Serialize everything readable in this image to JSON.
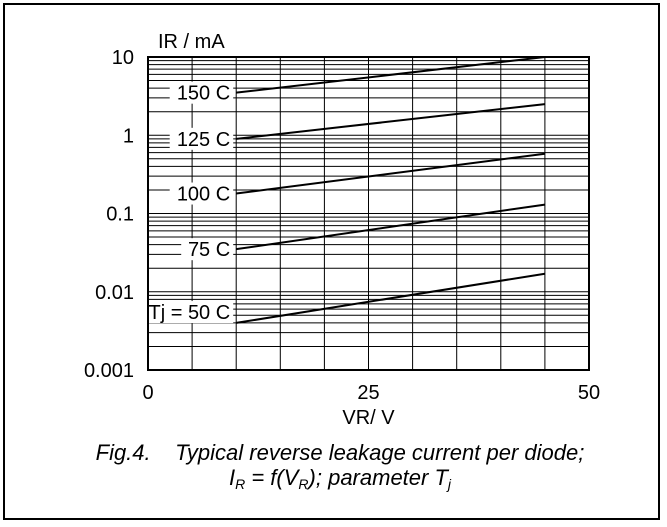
{
  "caption": {
    "line1_fig": "Fig.4.",
    "line1_text": "Typical reverse leakage current per diode;",
    "line2_I": "I",
    "line2_R1": "R",
    "line2_mid": " = f(V",
    "line2_R2": "R",
    "line2_tail": "); parameter T",
    "line2_j": "j"
  },
  "chart_data": {
    "type": "line",
    "title": "",
    "xlabel": "VR/ V",
    "ylabel": "IR / mA",
    "xlim": [
      0,
      50
    ],
    "ylim": [
      0.001,
      10
    ],
    "yscale": "log",
    "grid": true,
    "x_ticks": [
      {
        "value": 0,
        "label": "0"
      },
      {
        "value": 25,
        "label": "25"
      },
      {
        "value": 50,
        "label": "50"
      }
    ],
    "y_ticks": [
      {
        "value": 10,
        "label": "10"
      },
      {
        "value": 1,
        "label": "1"
      },
      {
        "value": 0.1,
        "label": "0.1"
      },
      {
        "value": 0.01,
        "label": "0.01"
      },
      {
        "value": 0.001,
        "label": "0.001"
      }
    ],
    "series": [
      {
        "name": "150 C",
        "x": [
          10,
          45
        ],
        "y": [
          3.5,
          10
        ]
      },
      {
        "name": "125 C",
        "x": [
          10,
          45
        ],
        "y": [
          0.9,
          2.5
        ]
      },
      {
        "name": "100 C",
        "x": [
          10,
          45
        ],
        "y": [
          0.18,
          0.58
        ]
      },
      {
        "name": "75 C",
        "x": [
          10,
          45
        ],
        "y": [
          0.035,
          0.13
        ]
      },
      {
        "name": "Tj = 50 C",
        "x": [
          10,
          45
        ],
        "y": [
          0.004,
          0.017
        ]
      }
    ],
    "curve_labels": [
      {
        "text": "150 C",
        "x": 10,
        "y": 3.5
      },
      {
        "text": "125 C",
        "x": 10,
        "y": 0.9
      },
      {
        "text": "100 C",
        "x": 10,
        "y": 0.18
      },
      {
        "text": "75 C",
        "x": 10,
        "y": 0.035
      },
      {
        "text": "Tj = 50 C",
        "x": 10,
        "y": 0.0055
      }
    ]
  }
}
